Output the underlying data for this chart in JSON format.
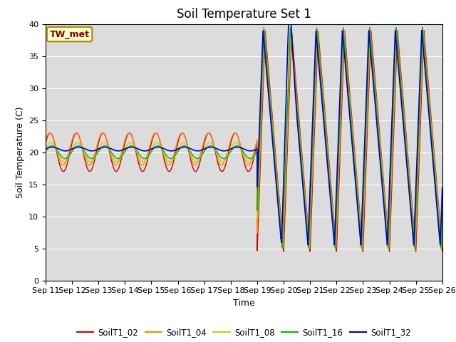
{
  "title": "Soil Temperature Set 1",
  "xlabel": "Time",
  "ylabel": "Soil Temperature (C)",
  "ylim": [
    0,
    40
  ],
  "x_tick_labels": [
    "Sep 11",
    "Sep 12",
    "Sep 13",
    "Sep 14",
    "Sep 15",
    "Sep 16",
    "Sep 17",
    "Sep 18",
    "Sep 19",
    "Sep 20",
    "Sep 21",
    "Sep 22",
    "Sep 23",
    "Sep 24",
    "Sep 25",
    "Sep 26"
  ],
  "annotation": "TW_met",
  "bg_color": "#dcdcdc",
  "legend": [
    "SoilT1_02",
    "SoilT1_04",
    "SoilT1_08",
    "SoilT1_16",
    "SoilT1_32"
  ],
  "colors": [
    "#cc0000",
    "#ff8800",
    "#cccc00",
    "#00bb00",
    "#0000cc"
  ],
  "title_fontsize": 12,
  "axis_fontsize": 9,
  "tick_fontsize": 8
}
